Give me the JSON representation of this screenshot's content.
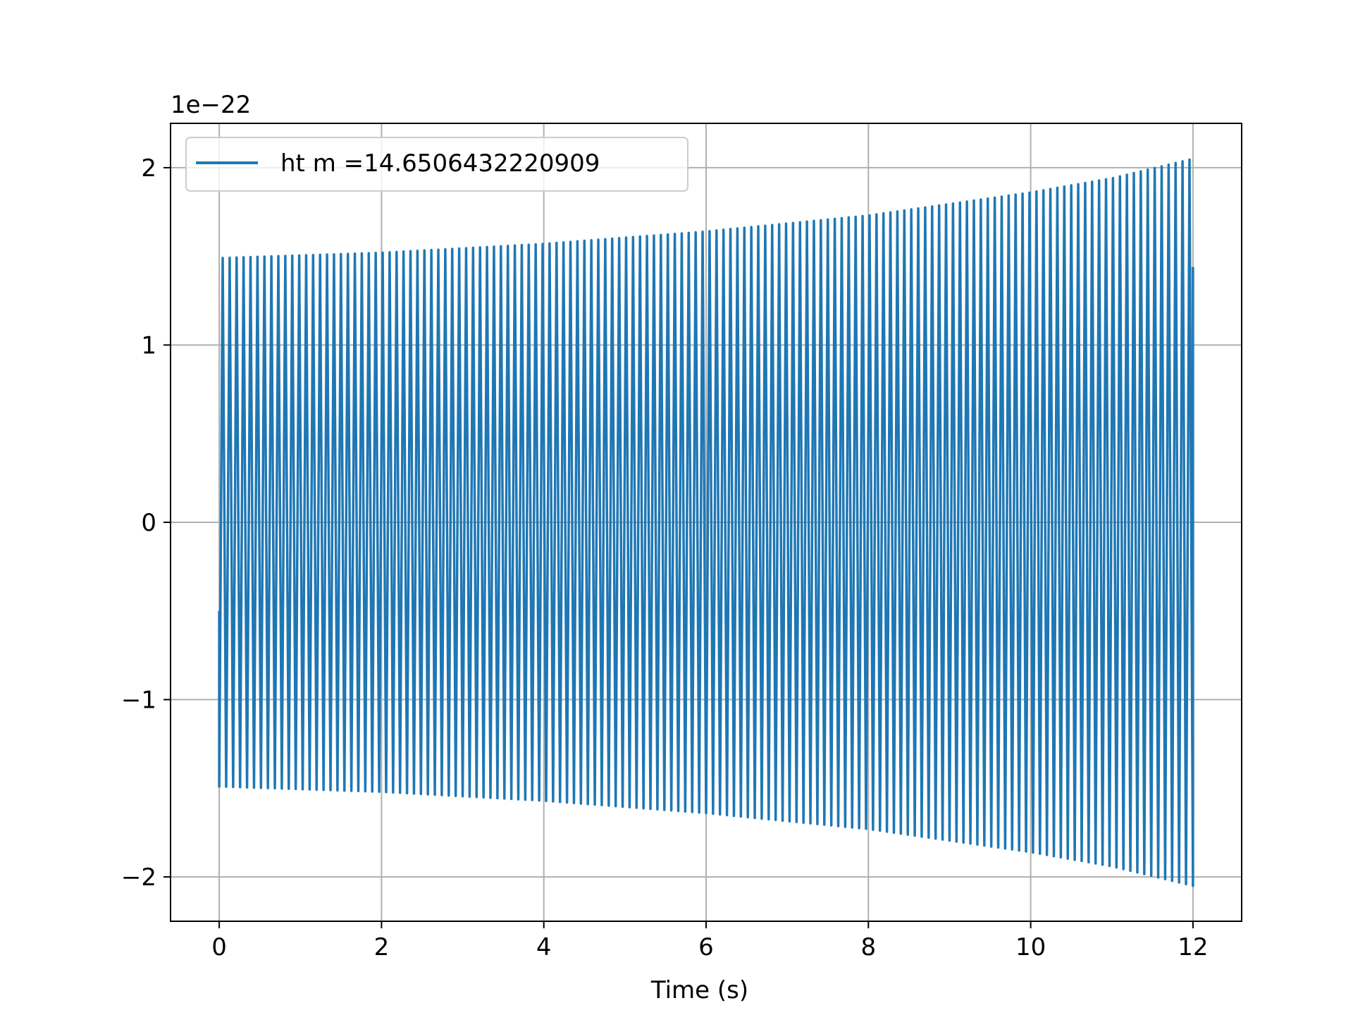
{
  "chart_data": {
    "type": "line",
    "title": "",
    "xlabel": "Time (s)",
    "ylabel": "",
    "y_offset_text": "1e−22",
    "xlim": [
      -0.6,
      12.6
    ],
    "ylim": [
      -2.25,
      2.25
    ],
    "xticks": [
      0,
      2,
      4,
      6,
      8,
      10,
      12
    ],
    "xtick_labels": [
      "0",
      "2",
      "4",
      "6",
      "8",
      "10",
      "12"
    ],
    "yticks": [
      -2,
      -1,
      0,
      1,
      2
    ],
    "ytick_labels": [
      "−2",
      "−1",
      "0",
      "1",
      "2"
    ],
    "grid": true,
    "legend_position": "upper-left",
    "color": "#1f77b4",
    "series": [
      {
        "name": "ht m =14.6506432220909",
        "x_start": 0,
        "x_end": 12,
        "oscillation_cycles": 140,
        "envelope": {
          "x": [
            0,
            2,
            4,
            6,
            8,
            10,
            11,
            12
          ],
          "amplitude": [
            1.49,
            1.52,
            1.57,
            1.64,
            1.73,
            1.86,
            1.94,
            2.05
          ]
        },
        "start_value": -0.5,
        "end_value": 1.44
      }
    ]
  }
}
